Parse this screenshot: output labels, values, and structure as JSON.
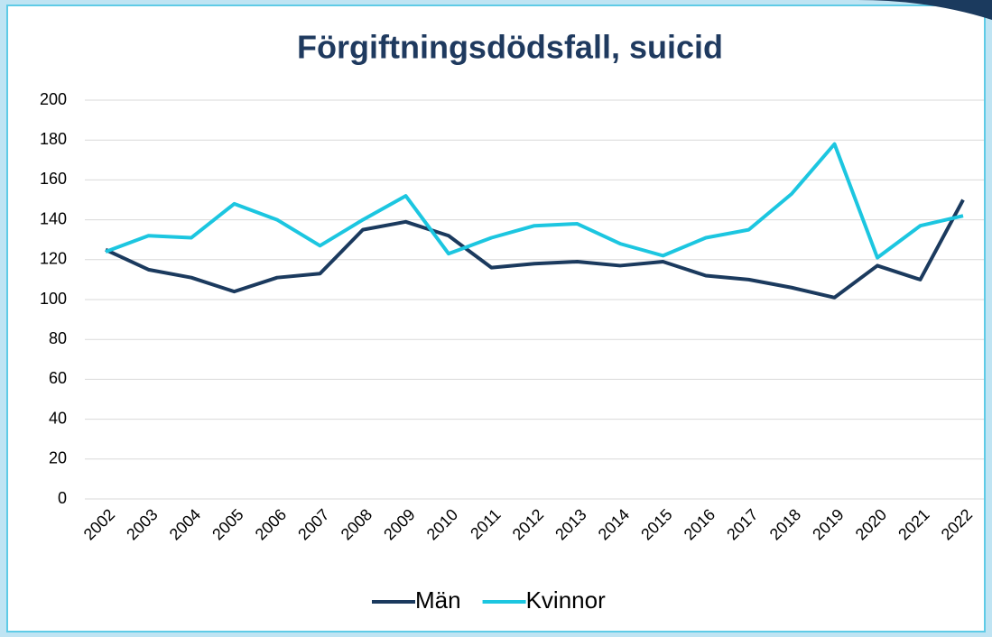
{
  "chart_data": {
    "type": "line",
    "title": "Förgiftningsdödsfall, suicid",
    "categories": [
      "2002",
      "2003",
      "2004",
      "2005",
      "2006",
      "2007",
      "2008",
      "2009",
      "2010",
      "2011",
      "2012",
      "2013",
      "2014",
      "2015",
      "2016",
      "2017",
      "2018",
      "2019",
      "2020",
      "2021",
      "2022"
    ],
    "series": [
      {
        "name": "Män",
        "color": "#1b3a5e",
        "values": [
          125,
          115,
          111,
          104,
          111,
          113,
          135,
          139,
          132,
          116,
          118,
          119,
          117,
          119,
          112,
          110,
          106,
          101,
          117,
          110,
          150
        ]
      },
      {
        "name": "Kvinnor",
        "color": "#1cc6e0",
        "values": [
          124,
          132,
          131,
          148,
          140,
          127,
          140,
          152,
          123,
          131,
          137,
          138,
          128,
          122,
          131,
          135,
          153,
          178,
          121,
          137,
          142
        ]
      }
    ],
    "ylim": [
      0,
      200
    ],
    "yticks": [
      0,
      20,
      40,
      60,
      80,
      100,
      120,
      140,
      160,
      180,
      200
    ],
    "grid": true,
    "legend": "bottom"
  }
}
